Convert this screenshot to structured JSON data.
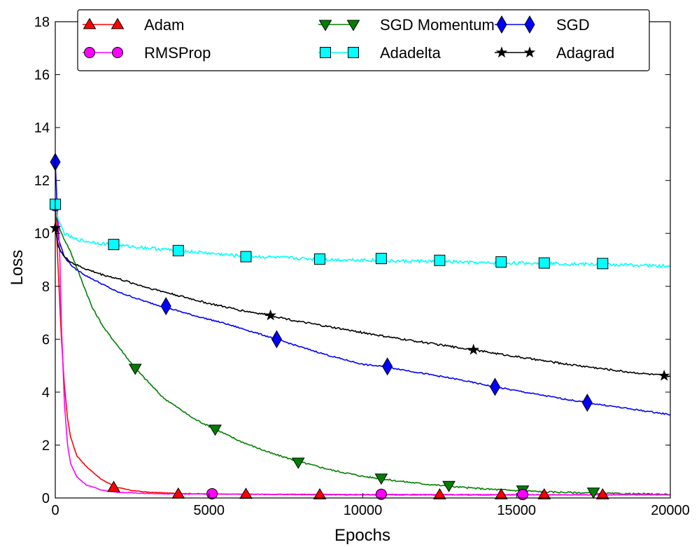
{
  "chart_data": {
    "type": "line",
    "title": "",
    "xlabel": "Epochs",
    "ylabel": "Loss",
    "xlim": [
      0,
      20000
    ],
    "ylim": [
      0,
      18
    ],
    "xticks": [
      0,
      5000,
      10000,
      15000,
      20000
    ],
    "yticks": [
      0,
      2,
      4,
      6,
      8,
      10,
      12,
      14,
      16,
      18
    ],
    "grid": false,
    "legend_position": "top",
    "series": [
      {
        "name": "Adam",
        "color": "#ff0000",
        "marker": "triangle-up",
        "x": [
          0,
          100,
          200,
          300,
          400,
          500,
          700,
          1000,
          1500,
          2000,
          2500,
          3000,
          4000,
          5000,
          6000,
          8000,
          10000,
          12000,
          14000,
          16000,
          18000,
          20000
        ],
        "y": [
          11.2,
          8.5,
          6.0,
          4.2,
          3.0,
          2.3,
          1.6,
          1.2,
          0.7,
          0.4,
          0.28,
          0.22,
          0.17,
          0.15,
          0.14,
          0.13,
          0.12,
          0.12,
          0.12,
          0.12,
          0.12,
          0.12
        ],
        "markers_x": [
          1900,
          4000,
          6200,
          8600,
          12500,
          14500,
          15900,
          17800
        ],
        "markers_y": [
          0.4,
          0.15,
          0.14,
          0.12,
          0.12,
          0.12,
          0.12,
          0.12
        ]
      },
      {
        "name": "SGD Momentum",
        "color": "#008000",
        "marker": "triangle-down",
        "x": [
          0,
          200,
          500,
          800,
          1200,
          1600,
          2000,
          2600,
          3500,
          4500,
          5200,
          6000,
          7000,
          8000,
          9000,
          10000,
          11000,
          12000,
          13000,
          14000,
          15000,
          16000,
          17000,
          18000,
          19000,
          20000
        ],
        "y": [
          10.7,
          10.0,
          9.3,
          8.4,
          7.2,
          6.4,
          5.8,
          4.9,
          3.8,
          3.0,
          2.6,
          2.15,
          1.7,
          1.35,
          1.05,
          0.82,
          0.66,
          0.53,
          0.42,
          0.34,
          0.28,
          0.23,
          0.2,
          0.17,
          0.15,
          0.14
        ],
        "markers_x": [
          2600,
          5200,
          7900,
          10600,
          12800,
          15200,
          17500
        ],
        "markers_y": [
          4.9,
          2.6,
          1.35,
          0.75,
          0.47,
          0.3,
          0.22
        ]
      },
      {
        "name": "SGD",
        "color": "#0000ff",
        "marker": "diamond",
        "x": [
          0,
          100,
          300,
          600,
          1000,
          1500,
          2000,
          3000,
          3600,
          4500,
          5500,
          6500,
          7200,
          8000,
          9000,
          10000,
          10800,
          12000,
          13000,
          14300,
          15500,
          16500,
          17300,
          18500,
          20000
        ],
        "y": [
          12.7,
          9.8,
          9.1,
          8.7,
          8.4,
          8.1,
          7.8,
          7.4,
          7.2,
          6.9,
          6.6,
          6.25,
          6.0,
          5.7,
          5.35,
          5.05,
          4.95,
          4.7,
          4.5,
          4.2,
          3.95,
          3.75,
          3.6,
          3.4,
          3.15
        ],
        "markers_x": [
          0,
          3600,
          7200,
          10800,
          14300,
          17300
        ],
        "markers_y": [
          12.7,
          7.25,
          6.0,
          4.97,
          4.2,
          3.6
        ]
      },
      {
        "name": "RMSProp",
        "color": "#ff00ff",
        "marker": "circle",
        "x": [
          0,
          100,
          150,
          200,
          300,
          400,
          500,
          700,
          1000,
          1500,
          2000,
          3000,
          4000,
          5000,
          7000,
          10000,
          13000,
          16000,
          20000
        ],
        "y": [
          11.05,
          10.5,
          9.0,
          6.5,
          3.5,
          2.0,
          1.3,
          0.8,
          0.5,
          0.3,
          0.22,
          0.17,
          0.15,
          0.15,
          0.14,
          0.13,
          0.13,
          0.12,
          0.12
        ],
        "markers_x": [
          0,
          5100,
          10600,
          15200
        ],
        "markers_y": [
          11.05,
          0.16,
          0.14,
          0.13
        ]
      },
      {
        "name": "Adadelta",
        "color": "#00ffff",
        "marker": "square",
        "x": [
          0,
          100,
          300,
          600,
          1000,
          1500,
          2000,
          3000,
          4000,
          5000,
          6000,
          7000,
          8000,
          9000,
          10000,
          11000,
          12000,
          13000,
          14000,
          15000,
          16000,
          17000,
          18000,
          19000,
          20000
        ],
        "y": [
          11.1,
          10.5,
          10.0,
          9.8,
          9.7,
          9.62,
          9.55,
          9.45,
          9.35,
          9.25,
          9.15,
          9.1,
          9.05,
          9.0,
          9.0,
          8.95,
          8.95,
          8.92,
          8.88,
          8.88,
          8.87,
          8.84,
          8.82,
          8.8,
          8.75
        ],
        "markers_x": [
          0,
          1900,
          4000,
          6200,
          8600,
          10600,
          12500,
          14500,
          15900,
          17800
        ],
        "markers_y": [
          11.1,
          9.58,
          9.35,
          9.12,
          9.03,
          9.05,
          8.98,
          8.92,
          8.88,
          8.86
        ]
      },
      {
        "name": "Adagrad",
        "color": "#000000",
        "marker": "star",
        "x": [
          0,
          100,
          300,
          600,
          1000,
          1500,
          2000,
          3000,
          4000,
          5000,
          6000,
          7000,
          8000,
          9000,
          10000,
          11000,
          12000,
          13000,
          13600,
          14500,
          15500,
          16500,
          17500,
          18500,
          19800,
          20000
        ],
        "y": [
          10.2,
          9.5,
          9.1,
          8.85,
          8.65,
          8.45,
          8.3,
          7.95,
          7.65,
          7.35,
          7.1,
          6.9,
          6.65,
          6.45,
          6.25,
          6.05,
          5.88,
          5.7,
          5.6,
          5.43,
          5.25,
          5.08,
          4.93,
          4.78,
          4.62,
          4.6
        ],
        "markers_x": [
          0,
          7000,
          13600,
          19800
        ],
        "markers_y": [
          10.2,
          6.9,
          5.6,
          4.62
        ]
      }
    ]
  }
}
